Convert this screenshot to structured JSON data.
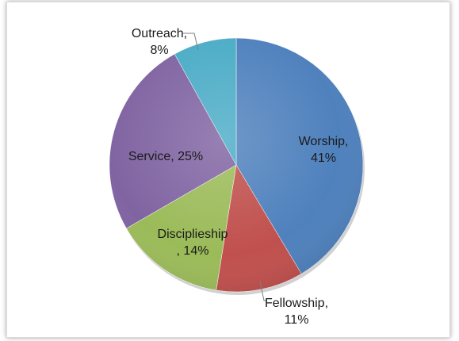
{
  "chart_data": {
    "type": "pie",
    "title": "",
    "slices": [
      {
        "label": "Worship",
        "value": 41,
        "color": "#4f81bd",
        "text_lines": [
          "Worship,",
          "41%"
        ]
      },
      {
        "label": "Fellowship",
        "value": 11,
        "color": "#c0504d",
        "text_lines": [
          "Fellowship,",
          "11%"
        ]
      },
      {
        "label": "Disciplieship",
        "value": 14,
        "color": "#9bbb59",
        "text_lines": [
          "Disciplieship",
          ", 14%"
        ]
      },
      {
        "label": "Service",
        "value": 25,
        "color": "#8064a2",
        "text_lines": [
          "Service, 25%"
        ]
      },
      {
        "label": "Outreach",
        "value": 8,
        "color": "#4bacc6",
        "text_lines": [
          "Outreach,",
          "8%"
        ]
      }
    ],
    "start_angle_deg": 0,
    "direction": "clockwise",
    "legend": "none",
    "data_labels": "category name and percentage"
  }
}
